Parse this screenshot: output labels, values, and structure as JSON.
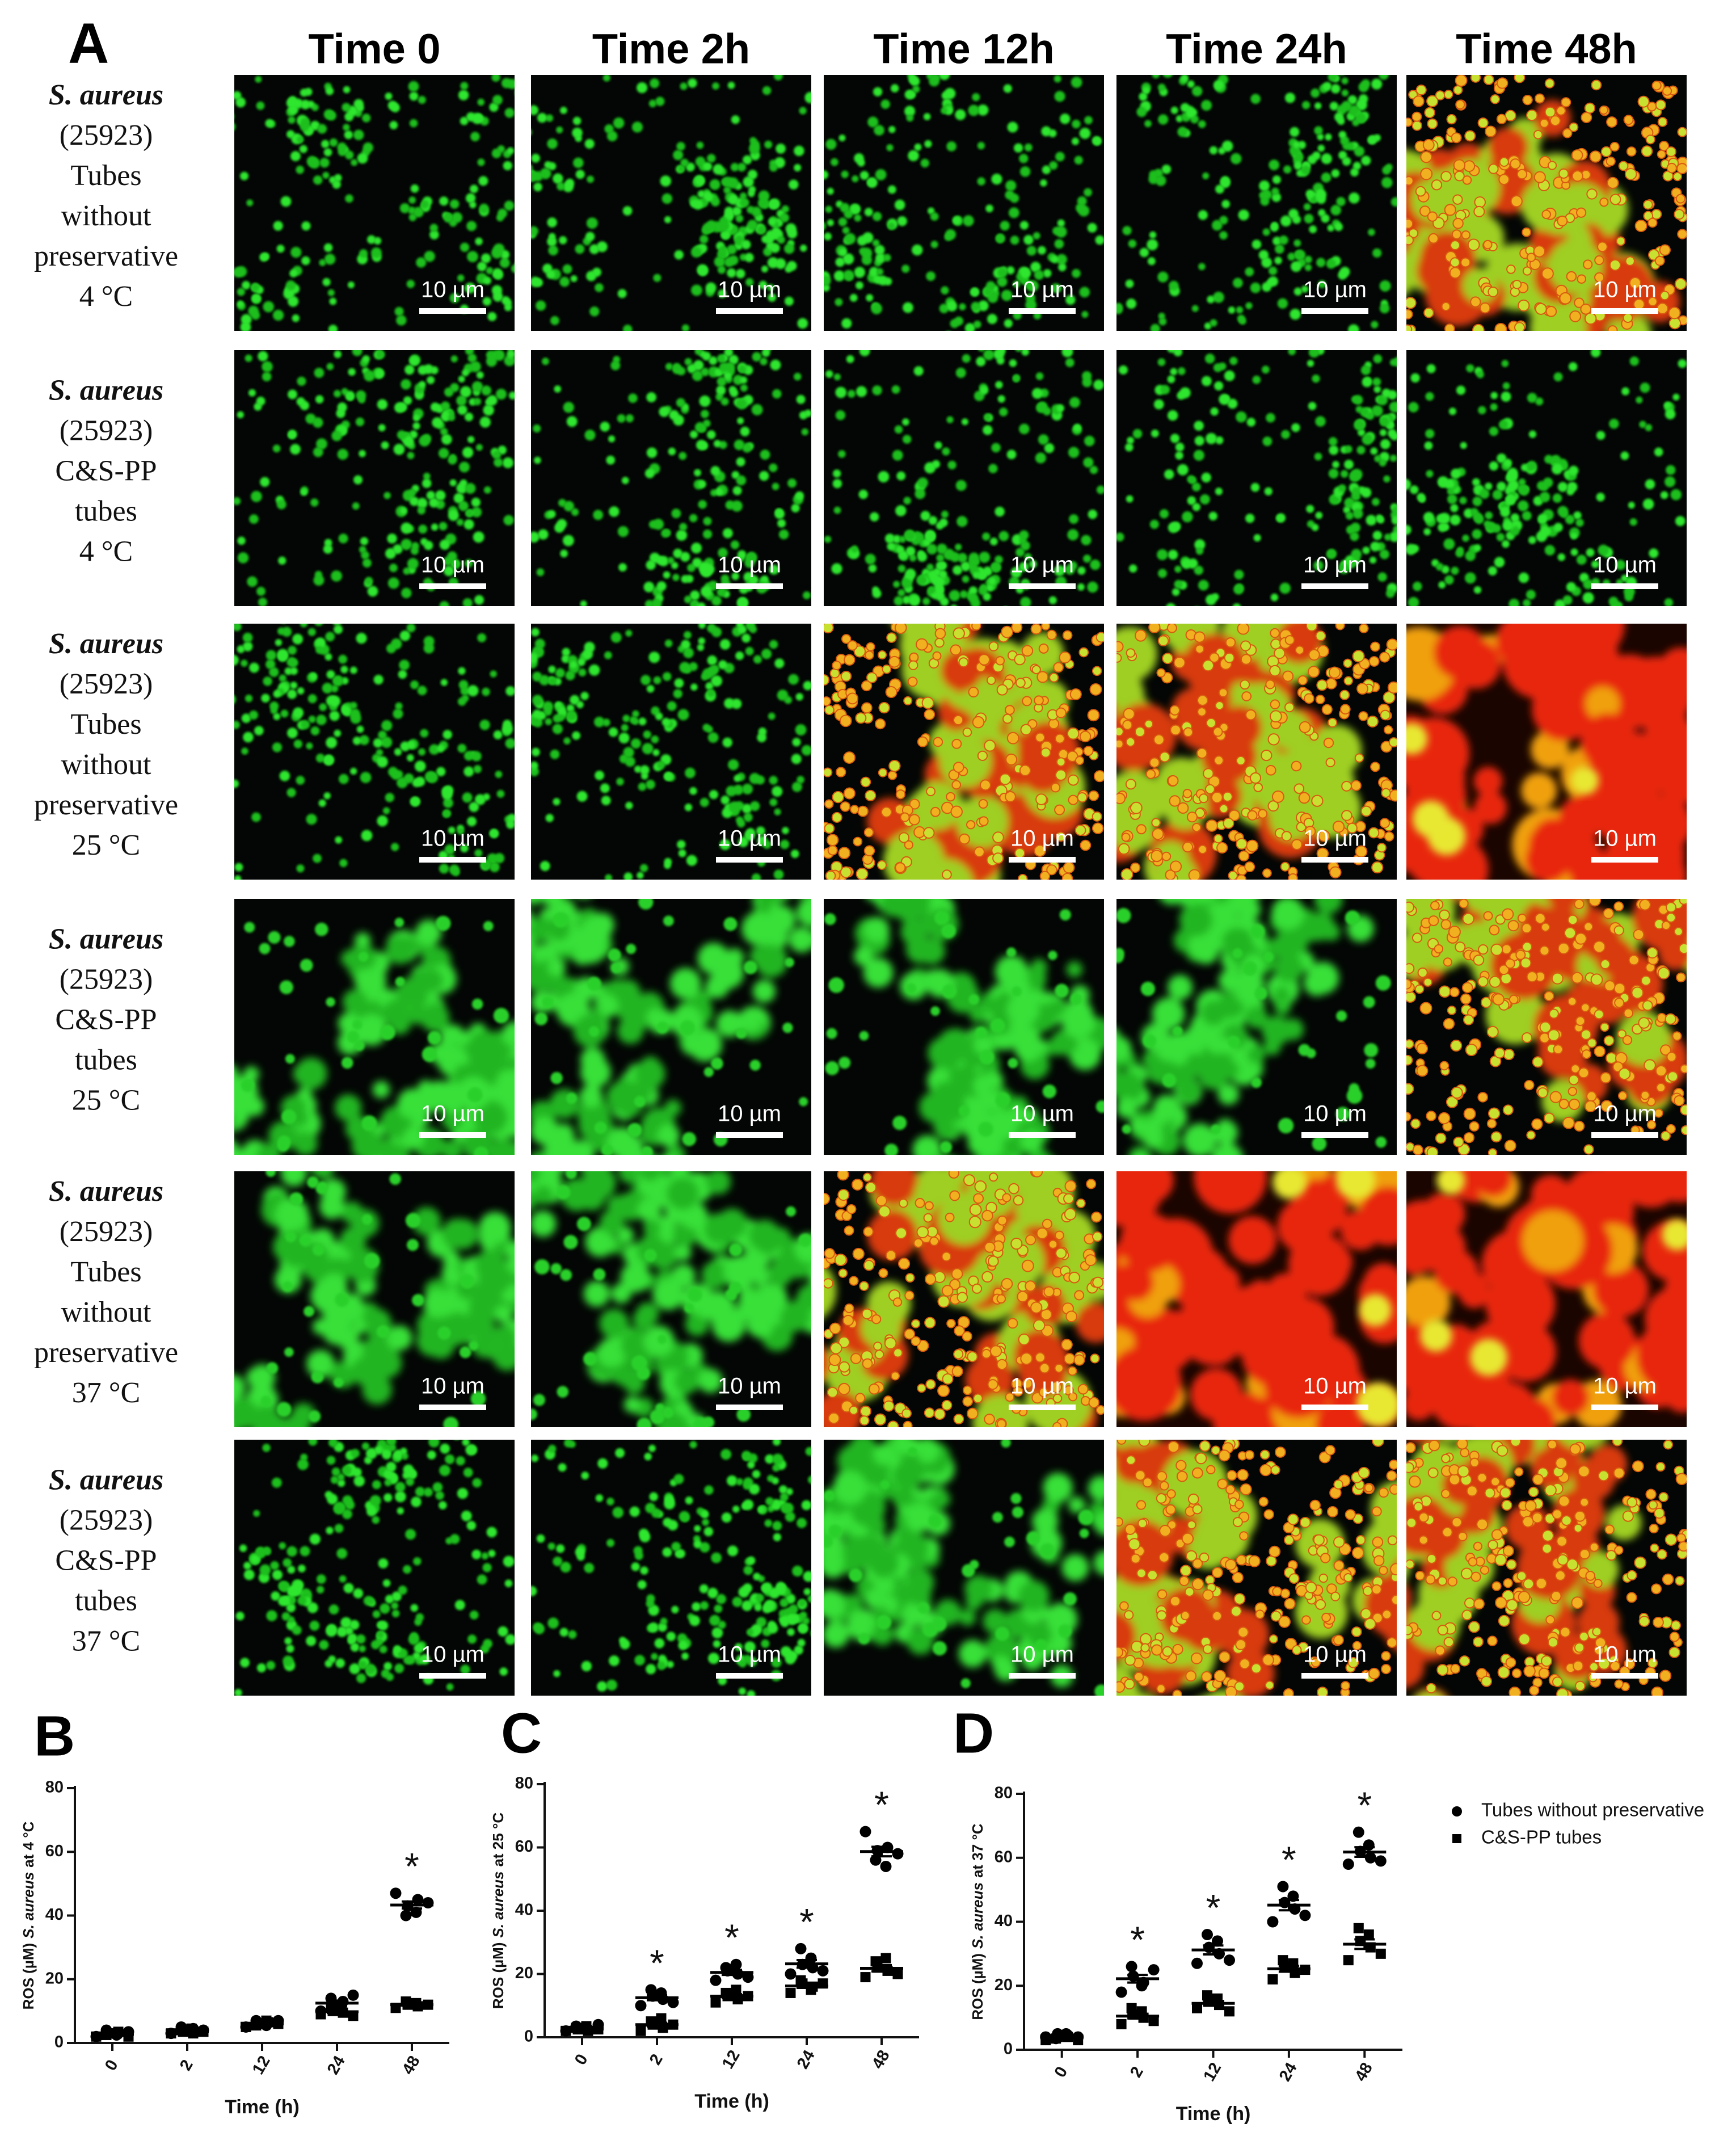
{
  "panel_a": {
    "label": "A",
    "columns": [
      "Time 0",
      "Time 2h",
      "Time 12h",
      "Time 24h",
      "Time 48h"
    ],
    "rows": [
      {
        "lines": [
          "S. aureus",
          "(25923)",
          "Tubes",
          "without",
          "preservative",
          "4 °C"
        ]
      },
      {
        "lines": [
          "S. aureus",
          "(25923)",
          "C&S-PP",
          "tubes",
          "4 °C"
        ]
      },
      {
        "lines": [
          "S. aureus",
          "(25923)",
          "Tubes",
          "without",
          "preservative",
          "25 °C"
        ]
      },
      {
        "lines": [
          "S. aureus",
          "(25923)",
          "C&S-PP",
          "tubes",
          "25 °C"
        ]
      },
      {
        "lines": [
          "S. aureus",
          "(25923)",
          "Tubes",
          "without",
          "preservative",
          "37 °C"
        ]
      },
      {
        "lines": [
          "S. aureus",
          "(25923)",
          "C&S-PP",
          "tubes",
          "37 °C"
        ]
      }
    ],
    "scale_bar": "10 µm"
  },
  "chart_data": [
    {
      "panel": "B",
      "type": "scatter",
      "xlabel": "Time (h)",
      "ylabel": [
        "ROS (µM)",
        "S. aureus",
        "at 4 °C"
      ],
      "categories": [
        "0",
        "2",
        "12",
        "24",
        "48"
      ],
      "ylim": [
        0,
        80
      ],
      "yticks": [
        0,
        20,
        40,
        60,
        80
      ],
      "significance": [
        null,
        null,
        null,
        null,
        "*"
      ],
      "series": [
        {
          "color": "#000000",
          "marker": "circle",
          "values": [
            [
              2,
              3,
              4,
              3,
              2.5,
              3.5
            ],
            [
              3,
              4,
              5,
              4.5,
              3.5,
              4
            ],
            [
              5,
              6,
              7,
              6.5,
              5.5,
              7
            ],
            [
              10,
              12,
              14,
              13,
              11,
              15
            ],
            [
              47,
              43,
              40,
              45,
              41,
              44
            ]
          ],
          "means": [
            3,
            4,
            6.2,
            12.5,
            43.3
          ],
          "sem": [
            0.3,
            0.3,
            0.3,
            0.8,
            1.1
          ]
        },
        {
          "color": "#000000",
          "marker": "square",
          "values": [
            [
              2,
              3,
              2.5,
              3.5,
              3,
              2
            ],
            [
              3,
              3.5,
              4,
              3,
              4.5,
              3.5
            ],
            [
              5,
              6,
              5.5,
              6.5,
              7,
              6
            ],
            [
              9,
              10,
              11,
              9.5,
              10.5,
              8.5
            ],
            [
              11,
              12,
              13,
              11.5,
              12.5,
              12
            ]
          ],
          "means": [
            2.7,
            3.6,
            6,
            9.8,
            12
          ],
          "sem": [
            0.3,
            0.2,
            0.3,
            0.4,
            0.3
          ]
        }
      ]
    },
    {
      "panel": "C",
      "type": "scatter",
      "xlabel": "Time (h)",
      "ylabel": [
        "ROS (µM)",
        "S. aureus",
        "at 25 °C"
      ],
      "categories": [
        "0",
        "2",
        "12",
        "24",
        "48"
      ],
      "ylim": [
        0,
        80
      ],
      "yticks": [
        0,
        20,
        40,
        60,
        80
      ],
      "significance": [
        null,
        "*",
        "*",
        "*",
        "*"
      ],
      "series": [
        {
          "color": "#000000",
          "marker": "circle",
          "values": [
            [
              2,
              3,
              3.5,
              2.5,
              3,
              4
            ],
            [
              10,
              13,
              15,
              12,
              14,
              11
            ],
            [
              18,
              21,
              22,
              20,
              23,
              19
            ],
            [
              20,
              23,
              28,
              22,
              25,
              21
            ],
            [
              65,
              59,
              56,
              60,
              54,
              58
            ]
          ],
          "means": [
            3,
            12.5,
            20.5,
            23.2,
            58.7
          ],
          "sem": [
            0.3,
            0.8,
            0.8,
            1.2,
            1.5
          ]
        },
        {
          "color": "#000000",
          "marker": "square",
          "values": [
            [
              2,
              2.5,
              3,
              2,
              3.5,
              2.5
            ],
            [
              2,
              4,
              5,
              3,
              6,
              4
            ],
            [
              11,
              13,
              14,
              12,
              15,
              13
            ],
            [
              14,
              17,
              18,
              16,
              15,
              17
            ],
            [
              19,
              22,
              24,
              21,
              25,
              20
            ]
          ],
          "means": [
            2.6,
            4,
            13,
            16.2,
            21.8
          ],
          "sem": [
            0.2,
            0.6,
            0.6,
            0.6,
            1
          ]
        }
      ]
    },
    {
      "panel": "D",
      "type": "scatter",
      "xlabel": "Time (h)",
      "ylabel": [
        "ROS (µM)",
        "S. aureus",
        "at 37 °C"
      ],
      "categories": [
        "0",
        "2",
        "12",
        "24",
        "48"
      ],
      "ylim": [
        0,
        80
      ],
      "yticks": [
        0,
        20,
        40,
        60,
        80
      ],
      "significance": [
        null,
        "*",
        "*",
        "*",
        "*"
      ],
      "legend": "right",
      "series": [
        {
          "name": "Tubes without preservative",
          "color": "#000000",
          "marker": "circle",
          "values": [
            [
              4,
              5,
              3.5,
              4.5,
              5,
              4
            ],
            [
              18,
              23,
              26,
              21,
              20,
              25
            ],
            [
              27,
              32,
              36,
              30,
              34,
              28
            ],
            [
              40,
              46,
              51,
              44,
              48,
              42
            ],
            [
              58,
              62,
              68,
              60,
              64,
              59
            ]
          ],
          "means": [
            4.3,
            22.2,
            31.2,
            45.2,
            61.8
          ],
          "sem": [
            0.2,
            1.2,
            1.4,
            1.6,
            1.5
          ]
        },
        {
          "name": "C&S-PP tubes",
          "color": "#000000",
          "marker": "square",
          "values": [
            [
              3,
              4,
              3.5,
              4,
              4.5,
              3
            ],
            [
              8,
              11,
              13,
              10,
              12,
              9
            ],
            [
              13,
              15,
              17,
              14,
              16,
              12
            ],
            [
              22,
              26,
              28,
              24,
              27,
              25
            ],
            [
              28,
              34,
              38,
              32,
              36,
              30
            ]
          ],
          "means": [
            3.7,
            10.5,
            14.5,
            25.3,
            33
          ],
          "sem": [
            0.3,
            0.7,
            0.7,
            0.9,
            1.5
          ]
        }
      ]
    }
  ]
}
